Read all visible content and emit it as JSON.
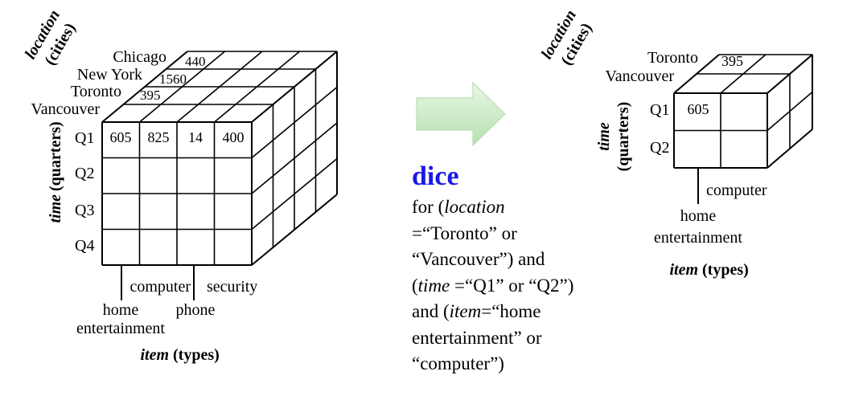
{
  "left_cube": {
    "location_axis": {
      "name": "location",
      "unit": "(cities)"
    },
    "cities_back_to_front": [
      "Chicago",
      "New York",
      "Toronto",
      "Vancouver"
    ],
    "back_values": [
      "440",
      "1560",
      "395"
    ],
    "quarters": [
      "Q1",
      "Q2",
      "Q3",
      "Q4"
    ],
    "q1_values": [
      "605",
      "825",
      "14",
      "400"
    ],
    "time_axis": {
      "name": "time",
      "unit": "(quarters)"
    },
    "items": {
      "computer": "computer",
      "security": "security",
      "home": "home",
      "home2": "entertainment",
      "phone": "phone"
    },
    "item_axis": {
      "name": "item",
      "unit": "(types)"
    }
  },
  "arrow": {
    "color": "#b9e5b3"
  },
  "dice": {
    "title": "dice",
    "lines": [
      [
        "for (",
        "location",
        ""
      ],
      [
        "=“Toronto” or",
        "",
        ""
      ],
      [
        "“Vancouver”) and",
        "",
        ""
      ],
      [
        "(",
        "time",
        " =“Q1” or “Q2”)"
      ],
      [
        "and (",
        "item",
        "=“home"
      ],
      [
        "entertainment” or",
        "",
        ""
      ],
      [
        "“computer”)",
        "",
        ""
      ]
    ]
  },
  "right_cube": {
    "location_axis": {
      "name": "location",
      "unit": "(cities)"
    },
    "cities_back_to_front": [
      "Toronto",
      "Vancouver"
    ],
    "back_value": "395",
    "quarters": [
      "Q1",
      "Q2"
    ],
    "q1_value": "605",
    "time_axis": {
      "name": "time",
      "unit": "(quarters)"
    },
    "items": {
      "computer": "computer",
      "home": "home",
      "home2": "entertainment"
    },
    "item_axis": {
      "name": "item",
      "unit": "(types)"
    }
  }
}
